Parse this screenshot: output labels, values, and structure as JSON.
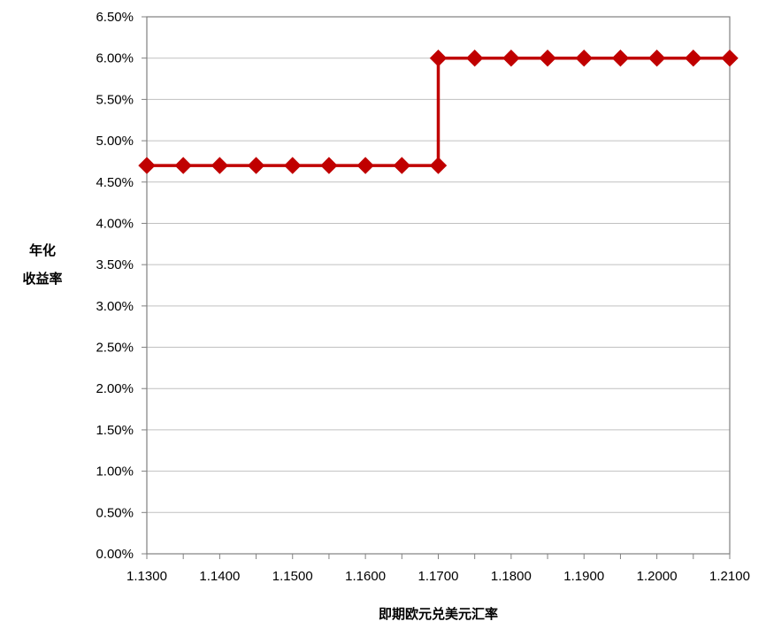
{
  "chart_data": {
    "type": "line",
    "xlabel": "即期欧元兑美元汇率",
    "ylabel_lines": [
      "年化",
      "收益率"
    ],
    "x_ticks": [
      "1.1300",
      "1.1400",
      "1.1500",
      "1.1600",
      "1.1700",
      "1.1800",
      "1.1900",
      "1.2000",
      "1.2100"
    ],
    "y_ticks": [
      "0.00%",
      "0.50%",
      "1.00%",
      "1.50%",
      "2.00%",
      "2.50%",
      "3.00%",
      "3.50%",
      "4.00%",
      "4.50%",
      "5.00%",
      "5.50%",
      "6.00%",
      "6.50%"
    ],
    "xlim": [
      1.13,
      1.21
    ],
    "ylim": [
      0,
      6.5
    ],
    "grid": "horizontal",
    "legend": "none",
    "series": [
      {
        "color": "#c00000",
        "marker": "diamond",
        "points": [
          [
            1.13,
            4.7
          ],
          [
            1.135,
            4.7
          ],
          [
            1.14,
            4.7
          ],
          [
            1.145,
            4.7
          ],
          [
            1.15,
            4.7
          ],
          [
            1.155,
            4.7
          ],
          [
            1.16,
            4.7
          ],
          [
            1.165,
            4.7
          ],
          [
            1.17,
            4.7
          ],
          [
            1.17,
            6.0
          ],
          [
            1.175,
            6.0
          ],
          [
            1.18,
            6.0
          ],
          [
            1.185,
            6.0
          ],
          [
            1.19,
            6.0
          ],
          [
            1.195,
            6.0
          ],
          [
            1.2,
            6.0
          ],
          [
            1.205,
            6.0
          ],
          [
            1.21,
            6.0
          ]
        ]
      }
    ]
  }
}
